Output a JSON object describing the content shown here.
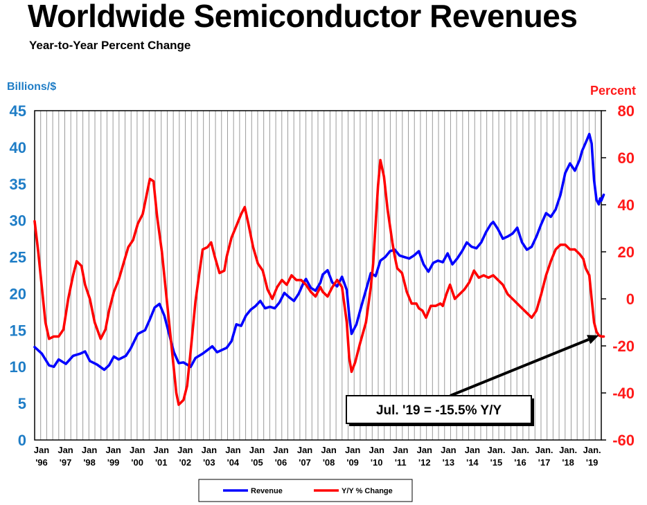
{
  "chart_data": {
    "type": "line",
    "title": "Worldwide Semiconductor Revenues",
    "subtitle": "Year-to-Year Percent Change",
    "ylabel_left": "Billions/$",
    "ylabel_right": "Percent",
    "ylim_left": [
      0,
      45
    ],
    "ylim_right": [
      -60,
      80
    ],
    "yticks_left": [
      "0",
      "5",
      "10",
      "15",
      "20",
      "25",
      "30",
      "35",
      "40",
      "45"
    ],
    "yticks_right": [
      "-60",
      "-40",
      "-20",
      "0",
      "20",
      "40",
      "60",
      "80"
    ],
    "xlim": [
      1996,
      2019.6
    ],
    "x_ticks": [
      {
        "month": "Jan",
        "year": "'96"
      },
      {
        "month": "Jan",
        "year": "'97"
      },
      {
        "month": "Jan",
        "year": "'98"
      },
      {
        "month": "Jan",
        "year": "'99"
      },
      {
        "month": "Jan",
        "year": "'00"
      },
      {
        "month": "Jan",
        "year": "'01"
      },
      {
        "month": "Jan",
        "year": "'02"
      },
      {
        "month": "Jan",
        "year": "'03"
      },
      {
        "month": "Jan",
        "year": "'04"
      },
      {
        "month": "Jan",
        "year": "'05"
      },
      {
        "month": "Jan",
        "year": "'06"
      },
      {
        "month": "Jan",
        "year": "'07"
      },
      {
        "month": "Jan",
        "year": "'08"
      },
      {
        "month": "Jan",
        "year": "'09"
      },
      {
        "month": "Jan",
        "year": "'10"
      },
      {
        "month": "Jan",
        "year": "'11"
      },
      {
        "month": "Jan",
        "year": "'12"
      },
      {
        "month": "Jan",
        "year": "'13"
      },
      {
        "month": "Jan",
        "year": "'14"
      },
      {
        "month": "Jan.",
        "year": "'15"
      },
      {
        "month": "Jan.",
        "year": "'16"
      },
      {
        "month": "Jan.",
        "year": "'17"
      },
      {
        "month": "Jan.",
        "year": "'18"
      },
      {
        "month": "Jan.",
        "year": "'19"
      }
    ],
    "grid": true,
    "series": [
      {
        "name": "Revenue",
        "axis": "left",
        "color": "#0000ff",
        "points": [
          [
            1996.0,
            12.7
          ],
          [
            1996.3,
            11.8
          ],
          [
            1996.6,
            10.2
          ],
          [
            1996.8,
            10.0
          ],
          [
            1997.0,
            11.0
          ],
          [
            1997.3,
            10.4
          ],
          [
            1997.6,
            11.5
          ],
          [
            1997.9,
            11.8
          ],
          [
            1998.1,
            12.1
          ],
          [
            1998.3,
            10.8
          ],
          [
            1998.6,
            10.3
          ],
          [
            1998.9,
            9.6
          ],
          [
            1999.1,
            10.2
          ],
          [
            1999.3,
            11.4
          ],
          [
            1999.5,
            11.0
          ],
          [
            1999.8,
            11.5
          ],
          [
            2000.0,
            12.5
          ],
          [
            2000.3,
            14.5
          ],
          [
            2000.6,
            15.0
          ],
          [
            2000.8,
            16.5
          ],
          [
            2001.0,
            18.1
          ],
          [
            2001.2,
            18.6
          ],
          [
            2001.4,
            17.0
          ],
          [
            2001.6,
            14.5
          ],
          [
            2001.8,
            12.0
          ],
          [
            2002.0,
            10.5
          ],
          [
            2002.2,
            10.6
          ],
          [
            2002.5,
            10.0
          ],
          [
            2002.7,
            11.2
          ],
          [
            2003.0,
            11.8
          ],
          [
            2003.2,
            12.3
          ],
          [
            2003.4,
            12.8
          ],
          [
            2003.6,
            12.0
          ],
          [
            2003.8,
            12.3
          ],
          [
            2004.0,
            12.6
          ],
          [
            2004.2,
            13.5
          ],
          [
            2004.4,
            15.8
          ],
          [
            2004.6,
            15.6
          ],
          [
            2004.8,
            17.0
          ],
          [
            2005.0,
            17.8
          ],
          [
            2005.2,
            18.3
          ],
          [
            2005.4,
            19.0
          ],
          [
            2005.6,
            18.0
          ],
          [
            2005.8,
            18.2
          ],
          [
            2006.0,
            18.0
          ],
          [
            2006.2,
            18.8
          ],
          [
            2006.4,
            20.1
          ],
          [
            2006.6,
            19.5
          ],
          [
            2006.8,
            19.0
          ],
          [
            2007.0,
            20.0
          ],
          [
            2007.2,
            21.5
          ],
          [
            2007.3,
            22.0
          ],
          [
            2007.5,
            20.8
          ],
          [
            2007.7,
            20.4
          ],
          [
            2007.9,
            21.5
          ],
          [
            2008.0,
            22.6
          ],
          [
            2008.2,
            23.2
          ],
          [
            2008.4,
            21.5
          ],
          [
            2008.6,
            21.0
          ],
          [
            2008.8,
            22.3
          ],
          [
            2009.0,
            20.5
          ],
          [
            2009.1,
            17.0
          ],
          [
            2009.2,
            14.5
          ],
          [
            2009.4,
            15.8
          ],
          [
            2009.6,
            18.2
          ],
          [
            2009.8,
            20.5
          ],
          [
            2010.0,
            22.8
          ],
          [
            2010.2,
            22.4
          ],
          [
            2010.4,
            24.5
          ],
          [
            2010.6,
            25.0
          ],
          [
            2010.8,
            25.8
          ],
          [
            2011.0,
            26.0
          ],
          [
            2011.2,
            25.2
          ],
          [
            2011.4,
            25.0
          ],
          [
            2011.6,
            24.8
          ],
          [
            2011.8,
            25.2
          ],
          [
            2012.0,
            25.8
          ],
          [
            2012.2,
            24.0
          ],
          [
            2012.4,
            23.0
          ],
          [
            2012.6,
            24.2
          ],
          [
            2012.8,
            24.5
          ],
          [
            2013.0,
            24.3
          ],
          [
            2013.2,
            25.5
          ],
          [
            2013.4,
            24.0
          ],
          [
            2013.6,
            24.8
          ],
          [
            2013.8,
            25.8
          ],
          [
            2014.0,
            27.0
          ],
          [
            2014.2,
            26.4
          ],
          [
            2014.4,
            26.2
          ],
          [
            2014.6,
            27.0
          ],
          [
            2014.8,
            28.4
          ],
          [
            2015.0,
            29.5
          ],
          [
            2015.1,
            29.8
          ],
          [
            2015.3,
            28.8
          ],
          [
            2015.5,
            27.5
          ],
          [
            2015.7,
            27.8
          ],
          [
            2015.9,
            28.2
          ],
          [
            2016.1,
            29.0
          ],
          [
            2016.3,
            27.0
          ],
          [
            2016.5,
            26.0
          ],
          [
            2016.7,
            26.4
          ],
          [
            2016.9,
            27.8
          ],
          [
            2017.1,
            29.5
          ],
          [
            2017.3,
            31.0
          ],
          [
            2017.5,
            30.5
          ],
          [
            2017.7,
            31.5
          ],
          [
            2017.9,
            33.5
          ],
          [
            2018.1,
            36.5
          ],
          [
            2018.3,
            37.8
          ],
          [
            2018.5,
            36.8
          ],
          [
            2018.7,
            38.3
          ],
          [
            2018.8,
            39.5
          ],
          [
            2019.0,
            41.0
          ],
          [
            2019.1,
            41.8
          ],
          [
            2019.2,
            40.5
          ],
          [
            2019.3,
            35.5
          ],
          [
            2019.4,
            32.8
          ],
          [
            2019.5,
            32.2
          ],
          [
            2019.55,
            33.0
          ],
          [
            2019.6,
            32.7
          ],
          [
            2019.7,
            33.5
          ]
        ]
      },
      {
        "name": "Y/Y % Change",
        "axis": "right",
        "color": "#ff0000",
        "points": [
          [
            1996.0,
            33
          ],
          [
            1996.15,
            20
          ],
          [
            1996.3,
            5
          ],
          [
            1996.45,
            -10
          ],
          [
            1996.6,
            -17
          ],
          [
            1996.8,
            -16
          ],
          [
            1997.0,
            -16
          ],
          [
            1997.2,
            -13
          ],
          [
            1997.4,
            0
          ],
          [
            1997.6,
            10
          ],
          [
            1997.75,
            16
          ],
          [
            1997.95,
            14
          ],
          [
            1998.1,
            6
          ],
          [
            1998.3,
            0
          ],
          [
            1998.5,
            -10
          ],
          [
            1998.75,
            -17
          ],
          [
            1998.95,
            -13
          ],
          [
            1999.1,
            -5
          ],
          [
            1999.3,
            3
          ],
          [
            1999.5,
            8
          ],
          [
            1999.7,
            15
          ],
          [
            1999.9,
            22
          ],
          [
            2000.1,
            25
          ],
          [
            2000.3,
            32
          ],
          [
            2000.5,
            36
          ],
          [
            2000.7,
            46
          ],
          [
            2000.8,
            51
          ],
          [
            2000.95,
            50
          ],
          [
            2001.1,
            35
          ],
          [
            2001.3,
            20
          ],
          [
            2001.5,
            0
          ],
          [
            2001.7,
            -20
          ],
          [
            2001.9,
            -40
          ],
          [
            2002.0,
            -45
          ],
          [
            2002.2,
            -43
          ],
          [
            2002.35,
            -37
          ],
          [
            2002.5,
            -22
          ],
          [
            2002.7,
            -1
          ],
          [
            2002.9,
            14
          ],
          [
            2003.0,
            21
          ],
          [
            2003.2,
            22
          ],
          [
            2003.35,
            24
          ],
          [
            2003.5,
            18
          ],
          [
            2003.7,
            11
          ],
          [
            2003.9,
            12
          ],
          [
            2004.0,
            18
          ],
          [
            2004.2,
            26
          ],
          [
            2004.4,
            31
          ],
          [
            2004.6,
            36
          ],
          [
            2004.75,
            39
          ],
          [
            2004.9,
            32
          ],
          [
            2005.1,
            22
          ],
          [
            2005.3,
            15
          ],
          [
            2005.5,
            12
          ],
          [
            2005.7,
            4
          ],
          [
            2005.9,
            0
          ],
          [
            2006.1,
            5
          ],
          [
            2006.3,
            8
          ],
          [
            2006.5,
            6
          ],
          [
            2006.7,
            10
          ],
          [
            2006.9,
            8
          ],
          [
            2007.1,
            8
          ],
          [
            2007.3,
            6
          ],
          [
            2007.5,
            3
          ],
          [
            2007.7,
            1
          ],
          [
            2007.9,
            5
          ],
          [
            2008.0,
            3
          ],
          [
            2008.2,
            1
          ],
          [
            2008.4,
            5
          ],
          [
            2008.6,
            8
          ],
          [
            2008.8,
            5
          ],
          [
            2009.0,
            -10
          ],
          [
            2009.1,
            -25
          ],
          [
            2009.2,
            -31
          ],
          [
            2009.35,
            -27
          ],
          [
            2009.55,
            -19
          ],
          [
            2009.8,
            -10
          ],
          [
            2010.0,
            5
          ],
          [
            2010.1,
            15
          ],
          [
            2010.3,
            48
          ],
          [
            2010.4,
            59
          ],
          [
            2010.55,
            52
          ],
          [
            2010.7,
            38
          ],
          [
            2010.9,
            24
          ],
          [
            2011.0,
            18
          ],
          [
            2011.1,
            13
          ],
          [
            2011.3,
            11
          ],
          [
            2011.5,
            3
          ],
          [
            2011.7,
            -2
          ],
          [
            2011.9,
            -2
          ],
          [
            2012.0,
            -4
          ],
          [
            2012.15,
            -5
          ],
          [
            2012.3,
            -8
          ],
          [
            2012.5,
            -3
          ],
          [
            2012.7,
            -3
          ],
          [
            2012.9,
            -2
          ],
          [
            2013.0,
            -3
          ],
          [
            2013.15,
            2
          ],
          [
            2013.3,
            6
          ],
          [
            2013.5,
            0
          ],
          [
            2013.7,
            2
          ],
          [
            2013.9,
            4
          ],
          [
            2014.1,
            7
          ],
          [
            2014.3,
            12
          ],
          [
            2014.5,
            9
          ],
          [
            2014.7,
            10
          ],
          [
            2014.9,
            9
          ],
          [
            2015.1,
            10
          ],
          [
            2015.3,
            8
          ],
          [
            2015.5,
            6
          ],
          [
            2015.7,
            2
          ],
          [
            2015.9,
            0
          ],
          [
            2016.1,
            -2
          ],
          [
            2016.3,
            -4
          ],
          [
            2016.5,
            -6
          ],
          [
            2016.7,
            -8
          ],
          [
            2016.9,
            -5
          ],
          [
            2017.1,
            2
          ],
          [
            2017.3,
            10
          ],
          [
            2017.5,
            16
          ],
          [
            2017.7,
            21
          ],
          [
            2017.9,
            23
          ],
          [
            2018.1,
            23
          ],
          [
            2018.3,
            21
          ],
          [
            2018.5,
            21
          ],
          [
            2018.7,
            19
          ],
          [
            2018.85,
            17
          ],
          [
            2018.95,
            13
          ],
          [
            2019.1,
            10
          ],
          [
            2019.2,
            0
          ],
          [
            2019.3,
            -10
          ],
          [
            2019.4,
            -14
          ],
          [
            2019.5,
            -15.5
          ],
          [
            2019.6,
            -16
          ],
          [
            2019.65,
            -16
          ],
          [
            2019.7,
            -16
          ]
        ]
      }
    ],
    "legend": {
      "position": "bottom-center",
      "entries": [
        {
          "label": "Revenue",
          "color": "#0000ff"
        },
        {
          "label": "Y/Y % Change",
          "color": "#ff0000"
        }
      ]
    },
    "annotation": {
      "text": "Jul. '19 = -15.5% Y/Y",
      "target_x": 2019.5,
      "target_y": -15.5,
      "target_axis": "right"
    }
  },
  "colors": {
    "left_axis": "#1f7dc6",
    "right_axis": "#ff1a1a",
    "grid": "#9a9a9a"
  }
}
